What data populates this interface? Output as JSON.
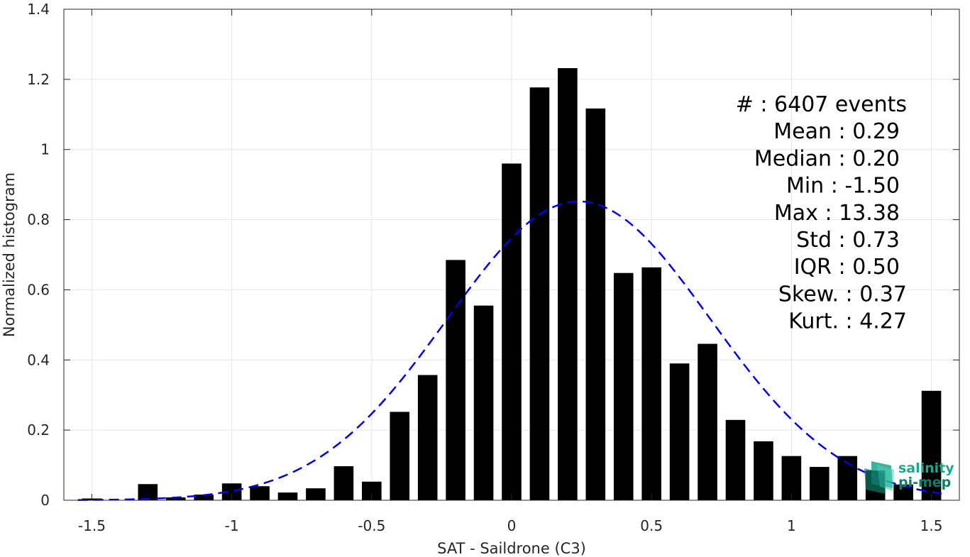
{
  "chart_data": {
    "type": "bar",
    "xlabel": "SAT - Saildrone (C3)",
    "ylabel": "Normalized histogram",
    "xlim": [
      -1.6,
      1.6
    ],
    "ylim": [
      0,
      1.4
    ],
    "grid": true,
    "x_ticks": [
      -1.5,
      -1,
      -0.5,
      0,
      0.5,
      1,
      1.5
    ],
    "x_tick_labels": [
      "-1.5",
      "-1",
      "-0.5",
      "0",
      "0.5",
      "1",
      "1.5"
    ],
    "y_ticks": [
      0,
      0.2,
      0.4,
      0.6,
      0.8,
      1,
      1.2,
      1.4
    ],
    "y_tick_labels": [
      "0",
      "0.2",
      "0.4",
      "0.6",
      "0.8",
      "1",
      "1.2",
      "1.4"
    ],
    "bar_width": 0.07,
    "bin_centers": [
      -1.5,
      -1.4,
      -1.3,
      -1.2,
      -1.1,
      -1.0,
      -0.9,
      -0.8,
      -0.7,
      -0.6,
      -0.5,
      -0.4,
      -0.3,
      -0.2,
      -0.1,
      0.0,
      0.1,
      0.2,
      0.3,
      0.4,
      0.5,
      0.6,
      0.7,
      0.8,
      0.9,
      1.0,
      1.1,
      1.2,
      1.3,
      1.4,
      1.5
    ],
    "series": [
      {
        "values": [
          0.005,
          0.0,
          0.046,
          0.008,
          0.016,
          0.048,
          0.04,
          0.022,
          0.034,
          0.097,
          0.053,
          0.252,
          0.357,
          0.685,
          0.555,
          0.96,
          1.177,
          1.232,
          1.117,
          0.648,
          0.664,
          0.39,
          0.446,
          0.229,
          0.168,
          0.126,
          0.095,
          0.126,
          0.085,
          0.045,
          0.312
        ],
        "color": "#000000"
      }
    ],
    "fit_curve": {
      "type": "normal",
      "mean": 0.24,
      "peak": 0.852,
      "sigma": 0.47,
      "color": "#0000ee",
      "style": "dashed"
    },
    "stats_lines": [
      {
        "text": "#  : 6407 events",
        "anchor": "end"
      },
      {
        "text": "Mean : 0.29",
        "anchor": "end"
      },
      {
        "text": "Median : 0.20",
        "anchor": "end"
      },
      {
        "text": "Min : -1.50",
        "anchor": "end"
      },
      {
        "text": "Max : 13.38",
        "anchor": "end"
      },
      {
        "text": "Std : 0.73",
        "anchor": "end"
      },
      {
        "text": "IQR : 0.50",
        "anchor": "end"
      },
      {
        "text": "Skew. : 0.37",
        "anchor": "end"
      },
      {
        "text": "Kurt. : 4.27",
        "anchor": "end"
      }
    ]
  },
  "logo": {
    "line1": "salinity",
    "line2": "pi-mep",
    "color": "#1aa88f"
  }
}
